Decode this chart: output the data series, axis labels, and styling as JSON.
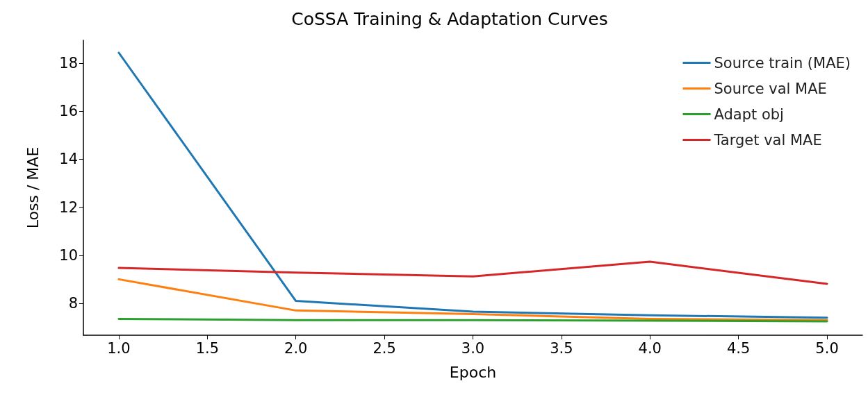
{
  "chart_data": {
    "type": "line",
    "title": "CoSSA Training & Adaptation Curves",
    "xlabel": "Epoch",
    "ylabel": "Loss / MAE",
    "x": [
      1,
      2,
      3,
      4,
      5
    ],
    "series": [
      {
        "name": "Source train (MAE)",
        "color": "#1f77b4",
        "values": [
          18.43,
          8.1,
          7.65,
          7.5,
          7.4
        ]
      },
      {
        "name": "Source val MAE",
        "color": "#ff7f0e",
        "values": [
          9.0,
          7.7,
          7.55,
          7.35,
          7.3
        ]
      },
      {
        "name": "Adapt obj",
        "color": "#2ca02c",
        "values": [
          7.35,
          7.3,
          7.3,
          7.28,
          7.25
        ]
      },
      {
        "name": "Target val MAE",
        "color": "#d62728",
        "values": [
          9.47,
          9.28,
          9.12,
          9.73,
          8.81
        ]
      }
    ],
    "xlim": [
      0.8,
      5.2
    ],
    "xticks": [
      {
        "value": 1,
        "label": "1.0"
      },
      {
        "value": 1.5,
        "label": "1.5"
      },
      {
        "value": 2,
        "label": "2.0"
      },
      {
        "value": 2.5,
        "label": "2.5"
      },
      {
        "value": 3,
        "label": "3.0"
      },
      {
        "value": 3.5,
        "label": "3.5"
      },
      {
        "value": 4,
        "label": "4.0"
      },
      {
        "value": 4.5,
        "label": "4.5"
      },
      {
        "value": 5,
        "label": "5.0"
      }
    ],
    "ylim": [
      6.67,
      18.95
    ],
    "yticks": [
      8,
      10,
      12,
      14,
      16,
      18
    ],
    "grid": false,
    "legend": "top right",
    "marker": "none",
    "line_style": "solid"
  }
}
